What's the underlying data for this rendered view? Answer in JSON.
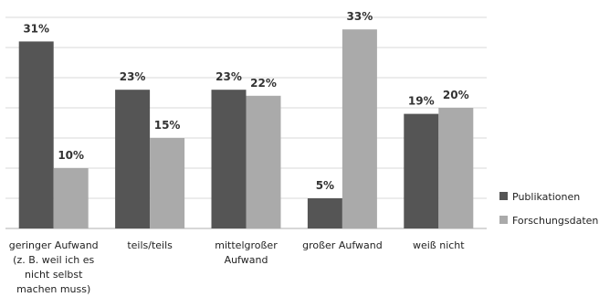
{
  "chart_data": {
    "type": "bar",
    "categories": [
      [
        "geringer Aufwand",
        "(z. B. weil ich es",
        "nicht selbst",
        "machen muss)"
      ],
      [
        "teils/teils"
      ],
      [
        "mittelgroßer",
        "Aufwand"
      ],
      [
        "großer Aufwand"
      ],
      [
        "weiß nicht"
      ]
    ],
    "series": [
      {
        "name": "Publikationen",
        "values": [
          31,
          23,
          23,
          5,
          19
        ],
        "labels": [
          "31%",
          "23%",
          "23%",
          "5%",
          "19%"
        ],
        "color": "#555555"
      },
      {
        "name": "Forschungsdaten",
        "values": [
          10,
          15,
          22,
          33,
          20
        ],
        "labels": [
          "10%",
          "15%",
          "22%",
          "33%",
          "20%"
        ],
        "color": "#aaaaaa"
      }
    ],
    "ylim": [
      0,
      35
    ],
    "grid": true,
    "gridline_color": "#d9d9d9",
    "axis_color": "#bfbfbf",
    "legend_position": "right"
  }
}
